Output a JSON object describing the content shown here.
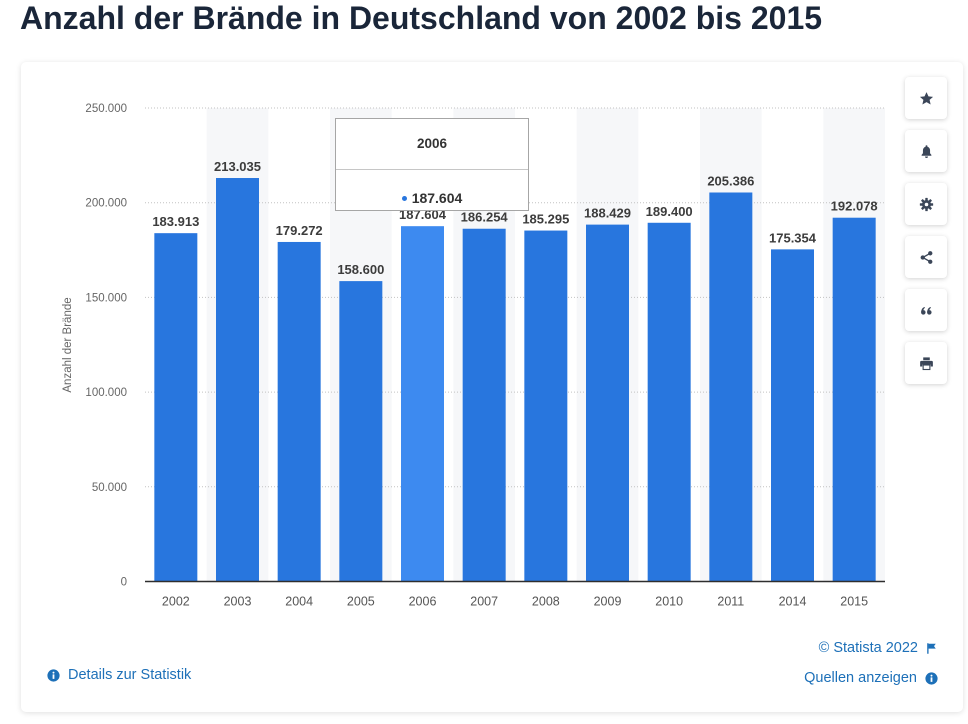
{
  "chart_data": {
    "type": "bar",
    "title": "Anzahl der Brände in Deutschland von 2002 bis 2015",
    "ylabel": "Anzahl der Brände",
    "categories": [
      "2002",
      "2003",
      "2004",
      "2005",
      "2006",
      "2007",
      "2008",
      "2009",
      "2010",
      "2011",
      "2014",
      "2015"
    ],
    "values": [
      183913,
      213035,
      179272,
      158600,
      187604,
      186254,
      185295,
      188429,
      189400,
      205386,
      175354,
      192078
    ],
    "data_labels": [
      "183.913",
      "213.035",
      "179.272",
      "158.600",
      "187.604",
      "186.254",
      "185.295",
      "188.429",
      "189.400",
      "205.386",
      "175.354",
      "192.078"
    ],
    "ylim": [
      0,
      250000
    ],
    "yticks": [
      0,
      50000,
      100000,
      150000,
      200000,
      250000
    ],
    "ytick_labels": [
      "0",
      "50.000",
      "100.000",
      "150.000",
      "200.000",
      "250.000"
    ],
    "grid": true
  },
  "tooltip": {
    "title": "2006",
    "value": "187.604"
  },
  "toolbar": {
    "icons": [
      "star-icon",
      "bell-icon",
      "gear-icon",
      "share-icon",
      "quote-icon",
      "print-icon"
    ]
  },
  "footer": {
    "copyright": "© Statista 2022",
    "copyright_icon": "flag-icon",
    "sources_link": "Quellen anzeigen",
    "sources_icon": "info-icon",
    "details_link": "Details zur Statistik",
    "details_icon": "info-icon"
  },
  "colors": {
    "title": "#1a2639",
    "link": "#1d70b8",
    "bar": "#2876de",
    "bar_hover": "#3d8af0",
    "band": "#f6f7f9",
    "toolbar_icon": "#3b4658"
  }
}
